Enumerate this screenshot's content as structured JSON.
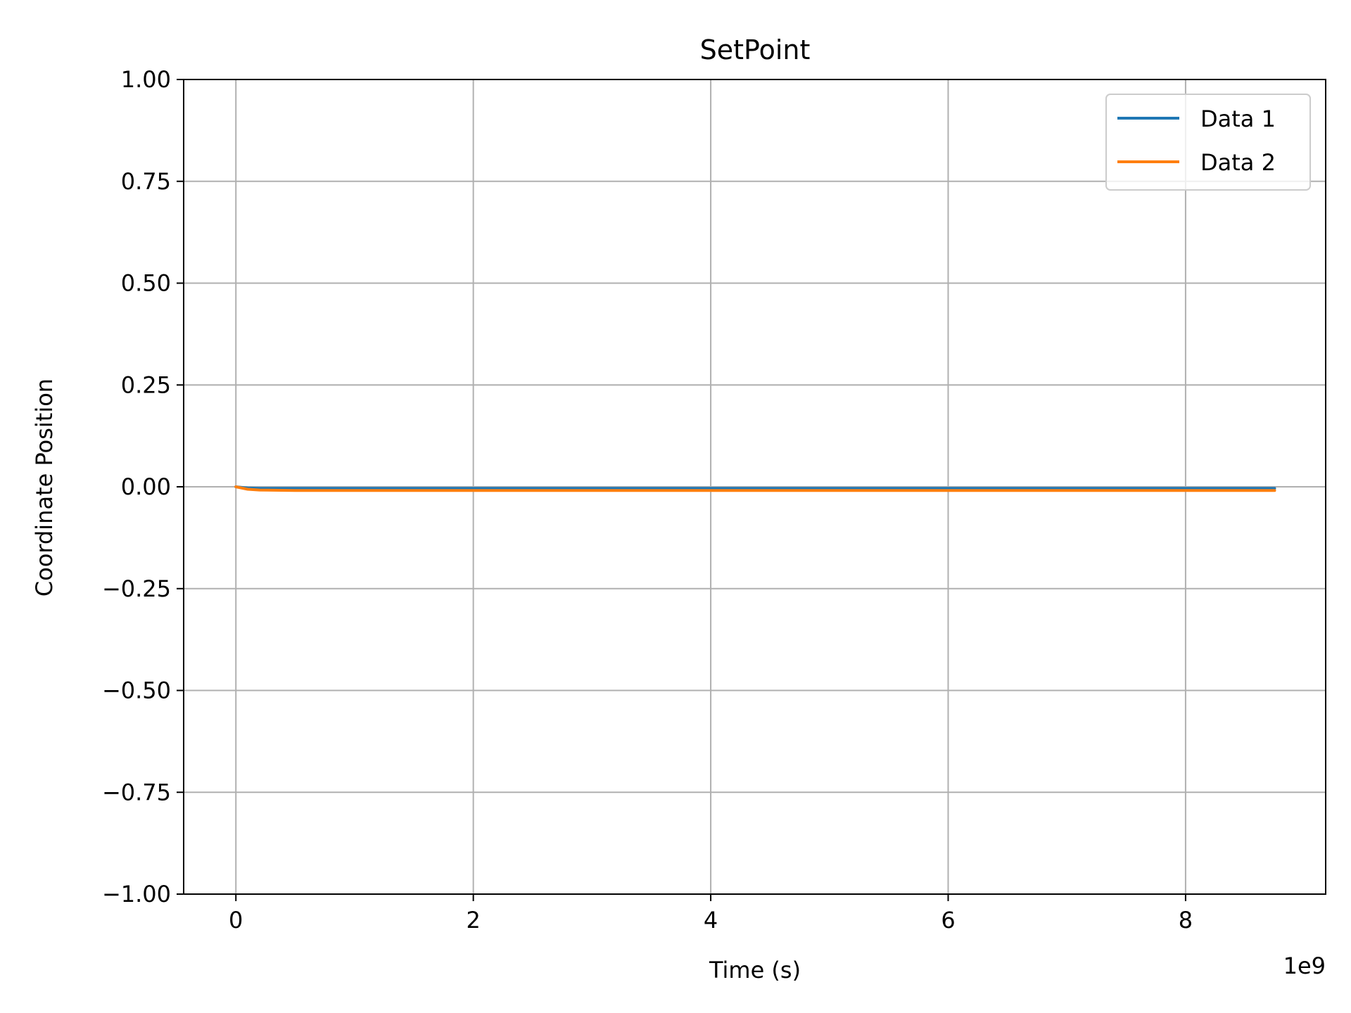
{
  "chart_data": {
    "type": "line",
    "title": "SetPoint",
    "xlabel": "Time (s)",
    "ylabel": "Coordinate Position",
    "x_offset_text": "1e9",
    "xlim": [
      -0.44,
      9.18
    ],
    "ylim": [
      -1.0,
      1.0
    ],
    "x_scale_factor": 1000000000,
    "xticks": [
      0,
      2,
      4,
      6,
      8
    ],
    "xtick_labels": [
      "0",
      "2",
      "4",
      "6",
      "8"
    ],
    "yticks": [
      -1.0,
      -0.75,
      -0.5,
      -0.25,
      0.0,
      0.25,
      0.5,
      0.75,
      1.0
    ],
    "ytick_labels": [
      "−1.00",
      "−0.75",
      "−0.50",
      "−0.25",
      "0.00",
      "0.25",
      "0.50",
      "0.75",
      "1.00"
    ],
    "grid": true,
    "legend_position": "top-right",
    "series": [
      {
        "name": "Data 1",
        "color": "#1f77b4",
        "x": [
          0.0,
          0.1,
          0.2,
          0.5,
          1.0,
          1.5,
          2.0,
          2.5,
          3.0,
          3.5,
          4.0,
          4.5,
          5.0,
          5.5,
          6.0,
          6.5,
          7.0,
          7.5,
          8.0,
          8.5,
          8.75
        ],
        "y": [
          0.0,
          -0.003,
          -0.004,
          -0.004,
          -0.004,
          -0.004,
          -0.004,
          -0.004,
          -0.004,
          -0.004,
          -0.004,
          -0.004,
          -0.004,
          -0.004,
          -0.004,
          -0.004,
          -0.004,
          -0.004,
          -0.004,
          -0.004,
          -0.004
        ]
      },
      {
        "name": "Data 2",
        "color": "#ff7f0e",
        "x": [
          0.0,
          0.1,
          0.2,
          0.5,
          1.0,
          1.5,
          2.0,
          2.5,
          3.0,
          3.5,
          4.0,
          4.5,
          5.0,
          5.5,
          6.0,
          6.5,
          7.0,
          7.5,
          8.0,
          8.5,
          8.75
        ],
        "y": [
          0.0,
          -0.006,
          -0.008,
          -0.009,
          -0.009,
          -0.009,
          -0.009,
          -0.009,
          -0.009,
          -0.009,
          -0.009,
          -0.009,
          -0.009,
          -0.009,
          -0.009,
          -0.009,
          -0.009,
          -0.009,
          -0.009,
          -0.009,
          -0.009
        ]
      }
    ]
  }
}
